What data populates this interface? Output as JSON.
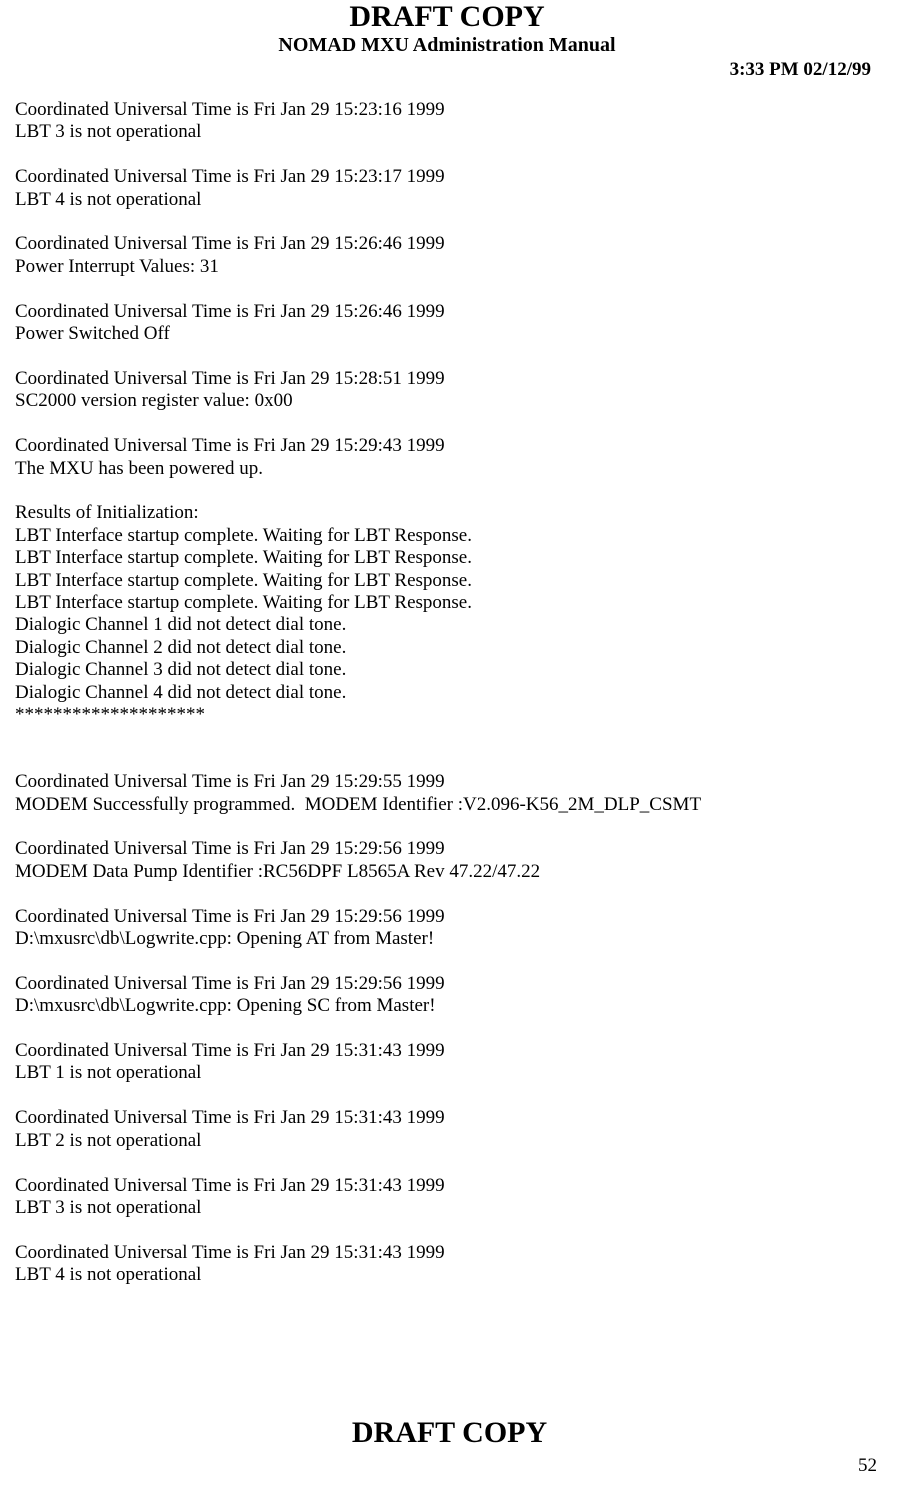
{
  "header": {
    "title": "DRAFT COPY",
    "subtitle": "NOMAD MXU Administration Manual",
    "timestamp": "3:33 PM  02/12/99"
  },
  "body": "Coordinated Universal Time is Fri Jan 29 15:23:16 1999\nLBT 3 is not operational\n\nCoordinated Universal Time is Fri Jan 29 15:23:17 1999\nLBT 4 is not operational\n\nCoordinated Universal Time is Fri Jan 29 15:26:46 1999\nPower Interrupt Values: 31\n\nCoordinated Universal Time is Fri Jan 29 15:26:46 1999\nPower Switched Off\n\nCoordinated Universal Time is Fri Jan 29 15:28:51 1999\nSC2000 version register value: 0x00\n\nCoordinated Universal Time is Fri Jan 29 15:29:43 1999\nThe MXU has been powered up.\n\nResults of Initialization:\nLBT Interface startup complete. Waiting for LBT Response.\nLBT Interface startup complete. Waiting for LBT Response.\nLBT Interface startup complete. Waiting for LBT Response.\nLBT Interface startup complete. Waiting for LBT Response.\nDialogic Channel 1 did not detect dial tone.\nDialogic Channel 2 did not detect dial tone.\nDialogic Channel 3 did not detect dial tone.\nDialogic Channel 4 did not detect dial tone.\n********************\n\n\nCoordinated Universal Time is Fri Jan 29 15:29:55 1999\nMODEM Successfully programmed.  MODEM Identifier :V2.096-K56_2M_DLP_CSMT\n\nCoordinated Universal Time is Fri Jan 29 15:29:56 1999\nMODEM Data Pump Identifier :RC56DPF L8565A Rev 47.22/47.22\n\nCoordinated Universal Time is Fri Jan 29 15:29:56 1999\nD:\\mxusrc\\db\\Logwrite.cpp: Opening AT from Master!\n\nCoordinated Universal Time is Fri Jan 29 15:29:56 1999\nD:\\mxusrc\\db\\Logwrite.cpp: Opening SC from Master!\n\nCoordinated Universal Time is Fri Jan 29 15:31:43 1999\nLBT 1 is not operational\n\nCoordinated Universal Time is Fri Jan 29 15:31:43 1999\nLBT 2 is not operational\n\nCoordinated Universal Time is Fri Jan 29 15:31:43 1999\nLBT 3 is not operational\n\nCoordinated Universal Time is Fri Jan 29 15:31:43 1999\nLBT 4 is not operational",
  "footer": {
    "title": "DRAFT COPY",
    "page_number": "52"
  }
}
